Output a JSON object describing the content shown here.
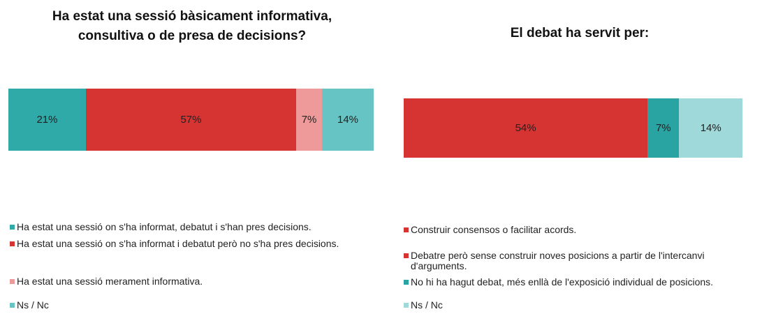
{
  "chart_data": [
    {
      "type": "bar",
      "title": "Ha estat una sessió bàsicament informativa, consultiva o de presa de decisions?",
      "series": [
        {
          "name": "Ha estat una sessió on s'ha informat, debatut i s'han pres decisions.",
          "color": "#30a9a9",
          "values": [
            21
          ],
          "value_labels": [
            "21%"
          ]
        },
        {
          "name": "Ha estat una sessió on s'ha informat i debatut però no s'ha pres decisions.",
          "color": "#d63333",
          "values": [
            57
          ],
          "value_labels": [
            "57%"
          ]
        },
        {
          "name": "Ha estat una sessió merament informativa.",
          "color": "#ee9a9a",
          "values": [
            7
          ],
          "value_labels": [
            "7%"
          ]
        },
        {
          "name": "Ns / Nc",
          "color": "#66c4c4",
          "values": [
            14
          ],
          "value_labels": [
            "14%"
          ]
        }
      ]
    },
    {
      "type": "bar",
      "title": "El debat ha servit per:",
      "series": [
        {
          "name": "Construir consensos o facilitar acords.",
          "color": "#d63333",
          "values": [
            null
          ]
        },
        {
          "name": "Debatre però sense construir noves posicions a partir de l'intercanvi d'arguments.",
          "color": "#d63333",
          "values": [
            54
          ],
          "value_labels": [
            "54%"
          ]
        },
        {
          "name": "No hi ha hagut debat, més enllà de l'exposició individual de posicions.",
          "color": "#2aa3a3",
          "values": [
            7
          ],
          "value_labels": [
            "7%"
          ]
        },
        {
          "name": "Ns / Nc",
          "color": "#9fd9d9",
          "values": [
            14
          ],
          "value_labels": [
            "14%"
          ]
        }
      ]
    }
  ]
}
